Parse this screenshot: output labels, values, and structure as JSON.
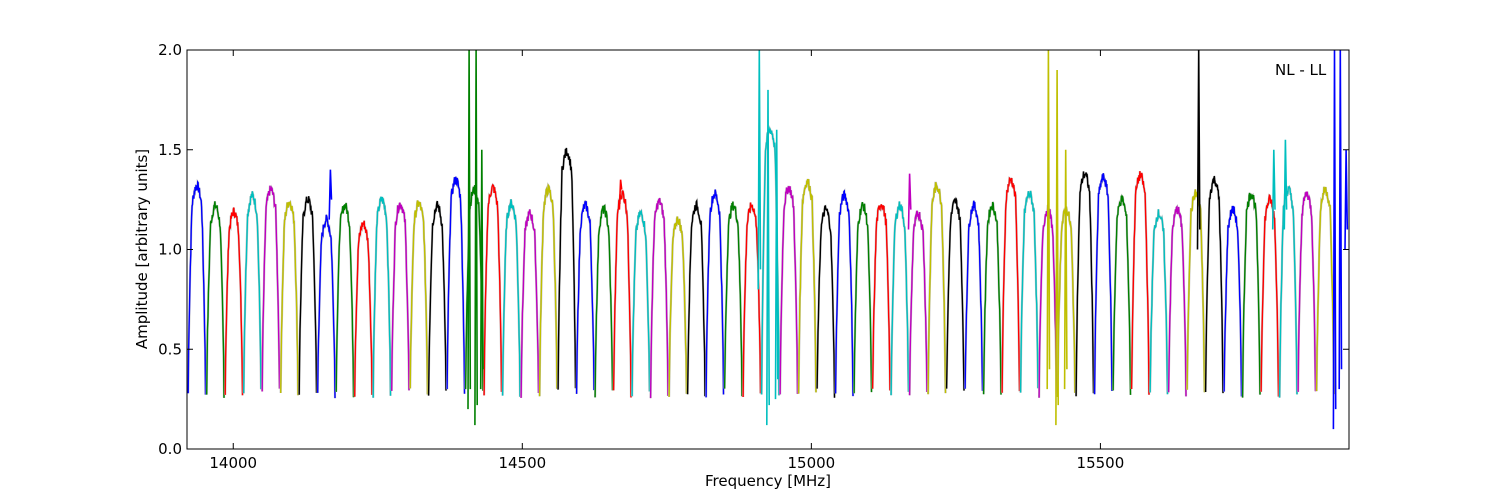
{
  "chart_data": {
    "type": "line",
    "title": "",
    "annotation": "NL - LL",
    "xlabel": "Frequency [MHz]",
    "ylabel": "Amplitude [arbitrary units]",
    "xlim": [
      13920,
      15930
    ],
    "ylim": [
      0.0,
      2.0
    ],
    "xticks": [
      {
        "value": 14000,
        "label": "14000"
      },
      {
        "value": 14500,
        "label": "14500"
      },
      {
        "value": 15000,
        "label": "15000"
      },
      {
        "value": 15500,
        "label": "15500"
      }
    ],
    "yticks": [
      {
        "value": 0.0,
        "label": "0.0"
      },
      {
        "value": 0.5,
        "label": "0.5"
      },
      {
        "value": 1.0,
        "label": "1.0"
      },
      {
        "value": 1.5,
        "label": "1.5"
      },
      {
        "value": 2.0,
        "label": "2.0"
      }
    ],
    "grid": false,
    "background_color": "#c0c0c0",
    "palette": [
      "#0000ff",
      "#008000",
      "#ff0000",
      "#00bfbf",
      "#bf00bf",
      "#bfbf00",
      "#000000"
    ],
    "channel_width_mhz": 32,
    "channel_start_mhz": 13922,
    "channel_count": 62,
    "channel_plateau": [
      1.32,
      1.22,
      1.19,
      1.27,
      1.3,
      1.24,
      1.25,
      1.15,
      1.22,
      1.13,
      1.25,
      1.23,
      1.23,
      1.22,
      1.35,
      1.3,
      1.31,
      1.23,
      1.18,
      1.3,
      1.49,
      1.22,
      1.2,
      1.28,
      1.18,
      1.24,
      1.15,
      1.22,
      1.28,
      1.22,
      1.22,
      1.6,
      1.31,
      1.34,
      1.2,
      1.27,
      1.22,
      1.23,
      1.22,
      1.18,
      1.32,
      1.24,
      1.22,
      1.22,
      1.35,
      1.28,
      1.2,
      1.2,
      1.38,
      1.36,
      1.25,
      1.37,
      1.18,
      1.2,
      1.28,
      1.35,
      1.2,
      1.28,
      1.25,
      1.3,
      1.28,
      1.3
    ],
    "spikes": [
      {
        "x": 14408,
        "y": 2.0,
        "low": 0.2,
        "color": "#008000"
      },
      {
        "x": 14420,
        "y": 2.0,
        "low": 0.12,
        "color": "#008000"
      },
      {
        "x": 14430,
        "y": 1.5,
        "low": 0.3,
        "color": "#008000"
      },
      {
        "x": 14168,
        "y": 1.4,
        "low": 1.15,
        "color": "#0000ff"
      },
      {
        "x": 14670,
        "y": 1.35,
        "low": 1.2,
        "color": "#ff0000"
      },
      {
        "x": 14910,
        "y": 2.0,
        "low": 0.8,
        "color": "#00bfbf"
      },
      {
        "x": 14925,
        "y": 1.8,
        "low": 0.12,
        "color": "#00bfbf"
      },
      {
        "x": 14940,
        "y": 1.6,
        "low": 0.25,
        "color": "#00bfbf"
      },
      {
        "x": 15170,
        "y": 1.38,
        "low": 1.1,
        "color": "#bf00bf"
      },
      {
        "x": 15410,
        "y": 2.0,
        "low": 0.3,
        "color": "#bfbf00"
      },
      {
        "x": 15425,
        "y": 1.9,
        "low": 0.12,
        "color": "#bfbf00"
      },
      {
        "x": 15440,
        "y": 1.5,
        "low": 0.3,
        "color": "#bfbf00"
      },
      {
        "x": 15670,
        "y": 2.0,
        "low": 1.0,
        "color": "#000000"
      },
      {
        "x": 15800,
        "y": 1.5,
        "low": 1.1,
        "color": "#00bfbf"
      },
      {
        "x": 15820,
        "y": 1.55,
        "low": 1.1,
        "color": "#00bfbf"
      },
      {
        "x": 15905,
        "y": 2.0,
        "low": 0.1,
        "color": "#0000ff"
      },
      {
        "x": 15915,
        "y": 2.0,
        "low": 0.3,
        "color": "#0000ff"
      },
      {
        "x": 15925,
        "y": 1.5,
        "low": 1.0,
        "color": "#0000ff"
      }
    ]
  }
}
